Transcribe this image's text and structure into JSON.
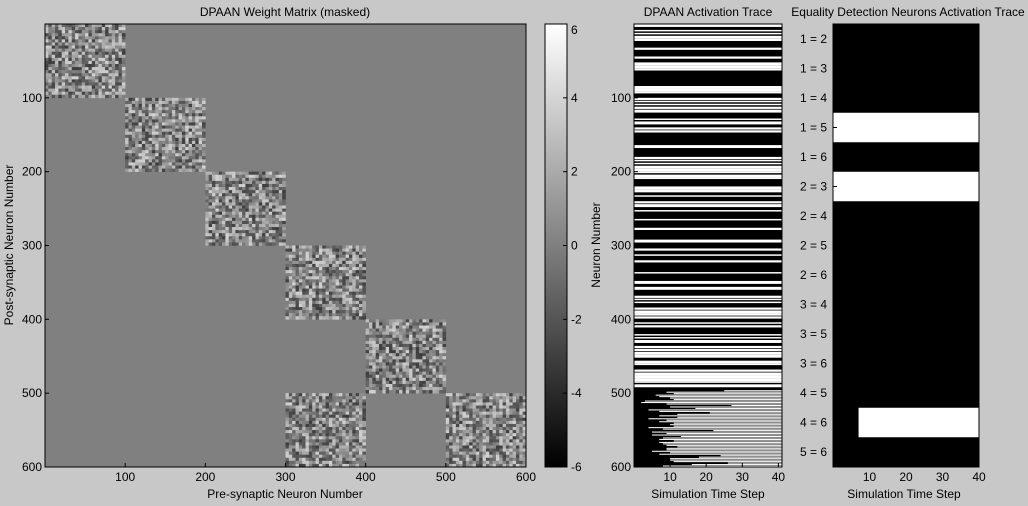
{
  "chart_data": [
    {
      "type": "heatmap",
      "title": "DPAAN Weight Matrix (masked)",
      "xlabel": "Pre-synaptic Neuron Number",
      "ylabel": "Post-synaptic Neuron Number",
      "xlim": [
        0,
        600
      ],
      "ylim": [
        600,
        0
      ],
      "xticks": [
        "100",
        "200",
        "300",
        "400",
        "500",
        "600"
      ],
      "yticks": [
        "100",
        "200",
        "300",
        "400",
        "500",
        "600"
      ],
      "background_value": 0,
      "blocks": [
        {
          "rows": [
            0,
            100
          ],
          "cols": [
            0,
            100
          ]
        },
        {
          "rows": [
            100,
            200
          ],
          "cols": [
            100,
            200
          ]
        },
        {
          "rows": [
            200,
            300
          ],
          "cols": [
            200,
            300
          ]
        },
        {
          "rows": [
            300,
            400
          ],
          "cols": [
            300,
            400
          ]
        },
        {
          "rows": [
            400,
            500
          ],
          "cols": [
            400,
            500
          ]
        },
        {
          "rows": [
            500,
            600
          ],
          "cols": [
            300,
            400
          ]
        },
        {
          "rows": [
            500,
            600
          ],
          "cols": [
            500,
            600
          ]
        }
      ],
      "colorbar": {
        "range": [
          -6,
          6
        ],
        "ticks": [
          "6",
          "4",
          "2",
          "0",
          "-2",
          "-4",
          "-6"
        ],
        "colormap": "gray"
      }
    },
    {
      "type": "heatmap",
      "title": "DPAAN Activation Trace",
      "xlabel": "Simulation Time Step",
      "ylabel": "Neuron Number",
      "xlim": [
        0,
        41
      ],
      "ylim": [
        600,
        0
      ],
      "xticks": [
        "10",
        "20",
        "30",
        "40"
      ],
      "yticks": [
        "100",
        "200",
        "300",
        "400",
        "500",
        "600"
      ],
      "active_until_row": 490,
      "colors": {
        "active": "#ffffff",
        "inactive": "#000000"
      }
    },
    {
      "type": "heatmap",
      "title": "Equality Detection Neurons Activation Trace",
      "xlabel": "Simulation Time Step",
      "ylabel": "",
      "xlim": [
        0,
        40
      ],
      "xticks": [
        "10",
        "20",
        "30",
        "40"
      ],
      "rows": [
        "1 = 2",
        "1 = 3",
        "1 = 4",
        "1 = 5",
        "1 = 6",
        "2 = 3",
        "2 = 4",
        "2 = 5",
        "2 = 6",
        "3 = 4",
        "3 = 5",
        "3 = 6",
        "4 = 5",
        "4 = 6",
        "5 = 6"
      ],
      "active": [
        {
          "row": "1 = 5",
          "from_step": 0,
          "to_step": 40
        },
        {
          "row": "2 = 3",
          "from_step": 0,
          "to_step": 40
        },
        {
          "row": "4 = 6",
          "from_step": 7,
          "to_step": 40
        }
      ],
      "colors": {
        "active": "#ffffff",
        "inactive": "#000000"
      }
    }
  ]
}
